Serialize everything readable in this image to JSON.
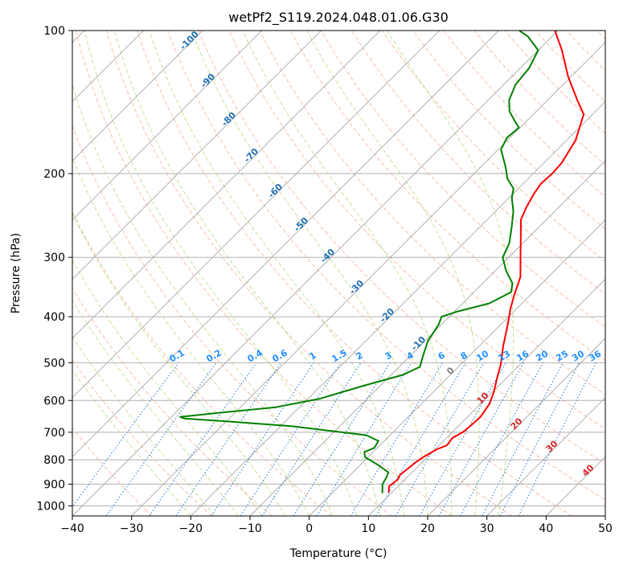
{
  "chart_data": {
    "type": "line",
    "title": "wetPf2_S119.2024.048.01.06.G30",
    "xlabel": "Temperature (°C)",
    "ylabel": "Pressure (hPa)",
    "xlim": [
      -40,
      50
    ],
    "ylim": [
      1050,
      100
    ],
    "y_scale": "log",
    "skew": "skew-T log-P",
    "grid": true,
    "x_ticks": [
      -40,
      -30,
      -20,
      -10,
      0,
      10,
      20,
      30,
      40,
      50
    ],
    "y_ticks": [
      100,
      200,
      300,
      400,
      500,
      600,
      700,
      800,
      900,
      1000
    ],
    "series": [
      {
        "color": "#ff0000",
        "points": [
          [
            9.5,
            938
          ],
          [
            8.5,
            910
          ],
          [
            8.8,
            880
          ],
          [
            8.4,
            860
          ],
          [
            8.7,
            830
          ],
          [
            8.9,
            810
          ],
          [
            9.3,
            790
          ],
          [
            10.3,
            760
          ],
          [
            11.3,
            745
          ],
          [
            11.0,
            720
          ],
          [
            11.8,
            700
          ],
          [
            12.0,
            680
          ],
          [
            12.2,
            650
          ],
          [
            11.5,
            610
          ],
          [
            10.2,
            575
          ],
          [
            8.5,
            540
          ],
          [
            6.8,
            505
          ],
          [
            4.0,
            460
          ],
          [
            1.5,
            420
          ],
          [
            -1.0,
            385
          ],
          [
            -2.7,
            360
          ],
          [
            -4.7,
            330
          ],
          [
            -8.0,
            300
          ],
          [
            -11.0,
            275
          ],
          [
            -14.3,
            250
          ],
          [
            -15.5,
            235
          ],
          [
            -16.5,
            220
          ],
          [
            -17.0,
            210
          ],
          [
            -16.8,
            200
          ],
          [
            -17.0,
            190
          ],
          [
            -18.5,
            170
          ],
          [
            -21.5,
            150
          ],
          [
            -25.0,
            140
          ],
          [
            -30.5,
            125
          ],
          [
            -36.0,
            110
          ],
          [
            -40.5,
            100
          ]
        ]
      },
      {
        "color": "#008000",
        "points": [
          [
            8.5,
            940
          ],
          [
            7.0,
            900
          ],
          [
            6.5,
            870
          ],
          [
            6.0,
            850
          ],
          [
            3.0,
            820
          ],
          [
            -0.5,
            790
          ],
          [
            -1.5,
            770
          ],
          [
            -0.5,
            755
          ],
          [
            -1.0,
            730
          ],
          [
            -4.0,
            710
          ],
          [
            -18.0,
            680
          ],
          [
            -29.0,
            665
          ],
          [
            -37.5,
            655
          ],
          [
            -38.5,
            650
          ],
          [
            -34.0,
            640
          ],
          [
            -24.0,
            620
          ],
          [
            -18.0,
            595
          ],
          [
            -13.0,
            560
          ],
          [
            -8.0,
            530
          ],
          [
            -6.5,
            510
          ],
          [
            -8.0,
            480
          ],
          [
            -9.5,
            450
          ],
          [
            -10.5,
            415
          ],
          [
            -11.3,
            400
          ],
          [
            -9.5,
            390
          ],
          [
            -5.5,
            375
          ],
          [
            -3.7,
            355
          ],
          [
            -5.0,
            340
          ],
          [
            -8.2,
            320
          ],
          [
            -11.0,
            300
          ],
          [
            -12.3,
            280
          ],
          [
            -14.5,
            260
          ],
          [
            -17.0,
            240
          ],
          [
            -19.5,
            225
          ],
          [
            -20.8,
            215
          ],
          [
            -23.5,
            205
          ],
          [
            -25.5,
            195
          ],
          [
            -27.8,
            185
          ],
          [
            -29.5,
            178
          ],
          [
            -30.5,
            168
          ],
          [
            -30.2,
            160
          ],
          [
            -32.0,
            155
          ],
          [
            -34.5,
            148
          ],
          [
            -36.5,
            140
          ],
          [
            -38.0,
            130
          ],
          [
            -38.5,
            120
          ],
          [
            -40.0,
            110
          ],
          [
            -44.0,
            103
          ],
          [
            -46.5,
            100
          ]
        ]
      }
    ],
    "dry_adiabat_labels": [
      "-100",
      "-90",
      "-80",
      "-70",
      "-60",
      "-50",
      "-40",
      "-30",
      "-20",
      "-10",
      "0",
      "10",
      "20",
      "30",
      "40"
    ],
    "mixing_ratio_labels": [
      "0.1",
      "0.2",
      "0.4",
      "0.6",
      "1",
      "1.5",
      "2",
      "3",
      "4",
      "6",
      "8",
      "10",
      "13",
      "16",
      "20",
      "25",
      "30",
      "36"
    ]
  }
}
